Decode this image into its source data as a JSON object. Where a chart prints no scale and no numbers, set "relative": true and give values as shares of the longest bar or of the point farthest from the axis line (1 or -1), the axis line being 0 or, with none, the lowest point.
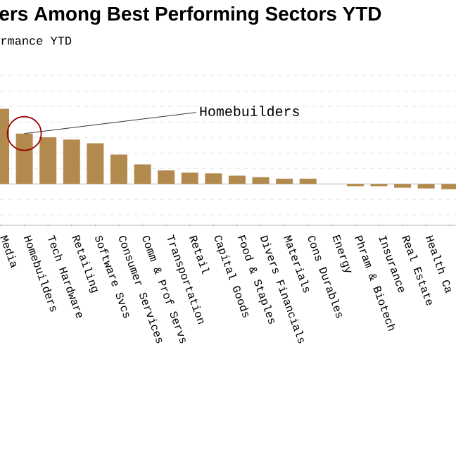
{
  "chart_data": {
    "type": "bar",
    "title": "ers Among Best Performing Sectors YTD",
    "subtitle": "rmance YTD",
    "relative": true,
    "color": "#b38a4e",
    "grid": "y",
    "categories": [
      "Media",
      "Homebuilders",
      "Tech Hardware",
      "Retailing",
      "Software Svcs",
      "Consumer Services",
      "Comm & Prof Servs",
      "Transportation",
      "Retail",
      "Capital Goods",
      "Food & Staples",
      "Divers Financials",
      "Materials",
      "Cons Durables",
      "Energy",
      "Phram & Biotech",
      "Insurance",
      "Real Estate",
      "Health Ca",
      null
    ],
    "values": [
      1,
      0.67,
      0.62,
      0.59,
      0.54,
      0.39,
      0.26,
      0.18,
      0.15,
      0.14,
      0.11,
      0.09,
      0.07,
      0.07,
      0.0,
      -0.03,
      -0.03,
      -0.05,
      -0.06,
      -0.07
    ],
    "annotations": [
      {
        "text": "Homebuilders",
        "x": "Homebuilders",
        "y": 0.67
      }
    ]
  }
}
